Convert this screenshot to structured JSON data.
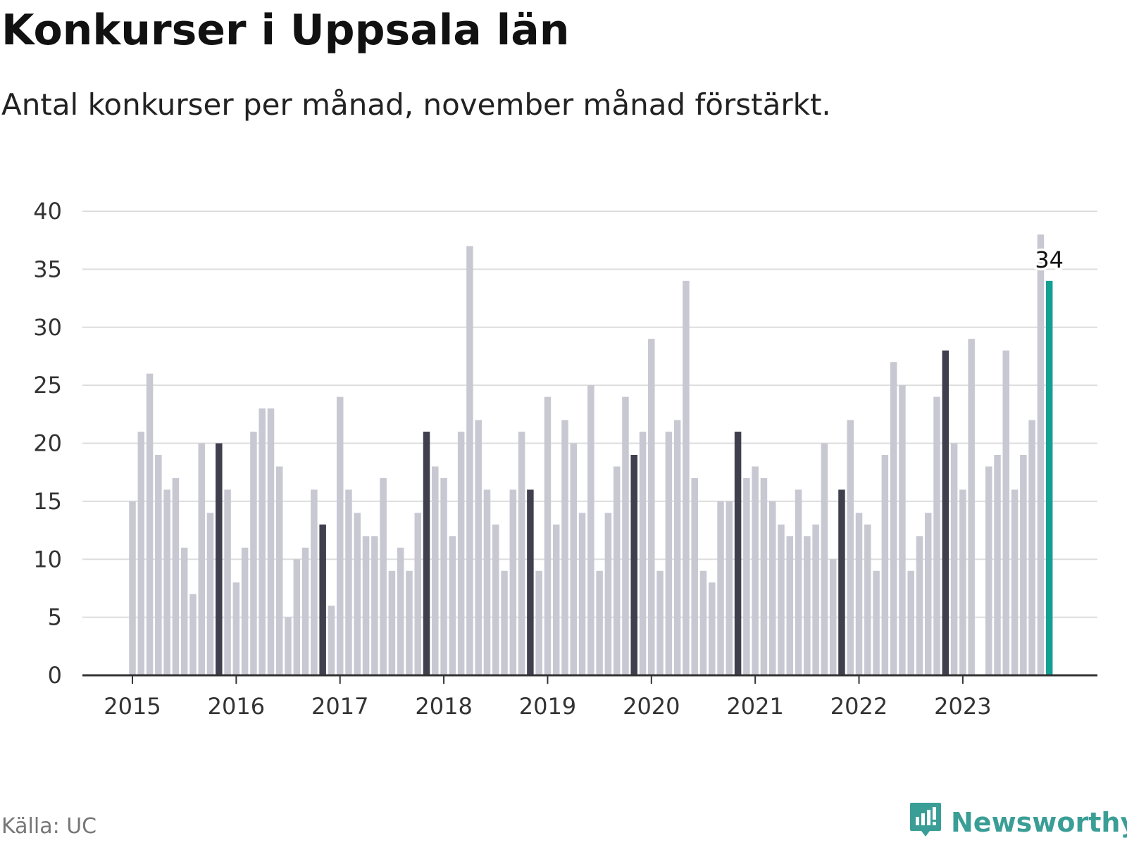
{
  "title": "Konkurser i Uppsala län",
  "subtitle": "Antal konkurser per månad, november månad förstärkt.",
  "source": "Källa: UC",
  "brand": {
    "name": "Newsworthy",
    "color": "#3a9e96"
  },
  "colors": {
    "regular": "#c8c8d2",
    "november": "#3f3f4e",
    "latest": "#13a093",
    "grid": "#dddddd",
    "axis": "#333333"
  },
  "chart_data": {
    "type": "bar",
    "title": "Konkurser i Uppsala län",
    "subtitle": "Antal konkurser per månad, november månad förstärkt.",
    "xlabel": "",
    "ylabel": "",
    "ylim": [
      0,
      40
    ],
    "yticks": [
      0,
      5,
      10,
      15,
      20,
      25,
      30,
      35,
      40
    ],
    "grid": true,
    "start": "2015-01",
    "xtick_labels": [
      "2015",
      "2016",
      "2017",
      "2018",
      "2019",
      "2020",
      "2021",
      "2022",
      "2023"
    ],
    "highlight": "november",
    "annotation": {
      "month": "2023-11",
      "text": "34"
    },
    "values": [
      15,
      21,
      26,
      19,
      16,
      17,
      11,
      7,
      20,
      14,
      20,
      16,
      8,
      11,
      21,
      23,
      23,
      18,
      5,
      10,
      11,
      16,
      13,
      6,
      24,
      16,
      14,
      12,
      12,
      17,
      9,
      11,
      9,
      14,
      21,
      18,
      17,
      12,
      21,
      37,
      22,
      16,
      13,
      9,
      16,
      21,
      16,
      9,
      24,
      13,
      22,
      20,
      14,
      25,
      9,
      14,
      18,
      24,
      19,
      21,
      29,
      9,
      21,
      22,
      34,
      17,
      9,
      8,
      15,
      15,
      21,
      17,
      18,
      17,
      15,
      13,
      12,
      16,
      12,
      13,
      20,
      10,
      16,
      22,
      14,
      13,
      9,
      19,
      27,
      25,
      9,
      12,
      14,
      24,
      28,
      20,
      16,
      29,
      0,
      18,
      19,
      28,
      16,
      19,
      22,
      38,
      34
    ]
  }
}
